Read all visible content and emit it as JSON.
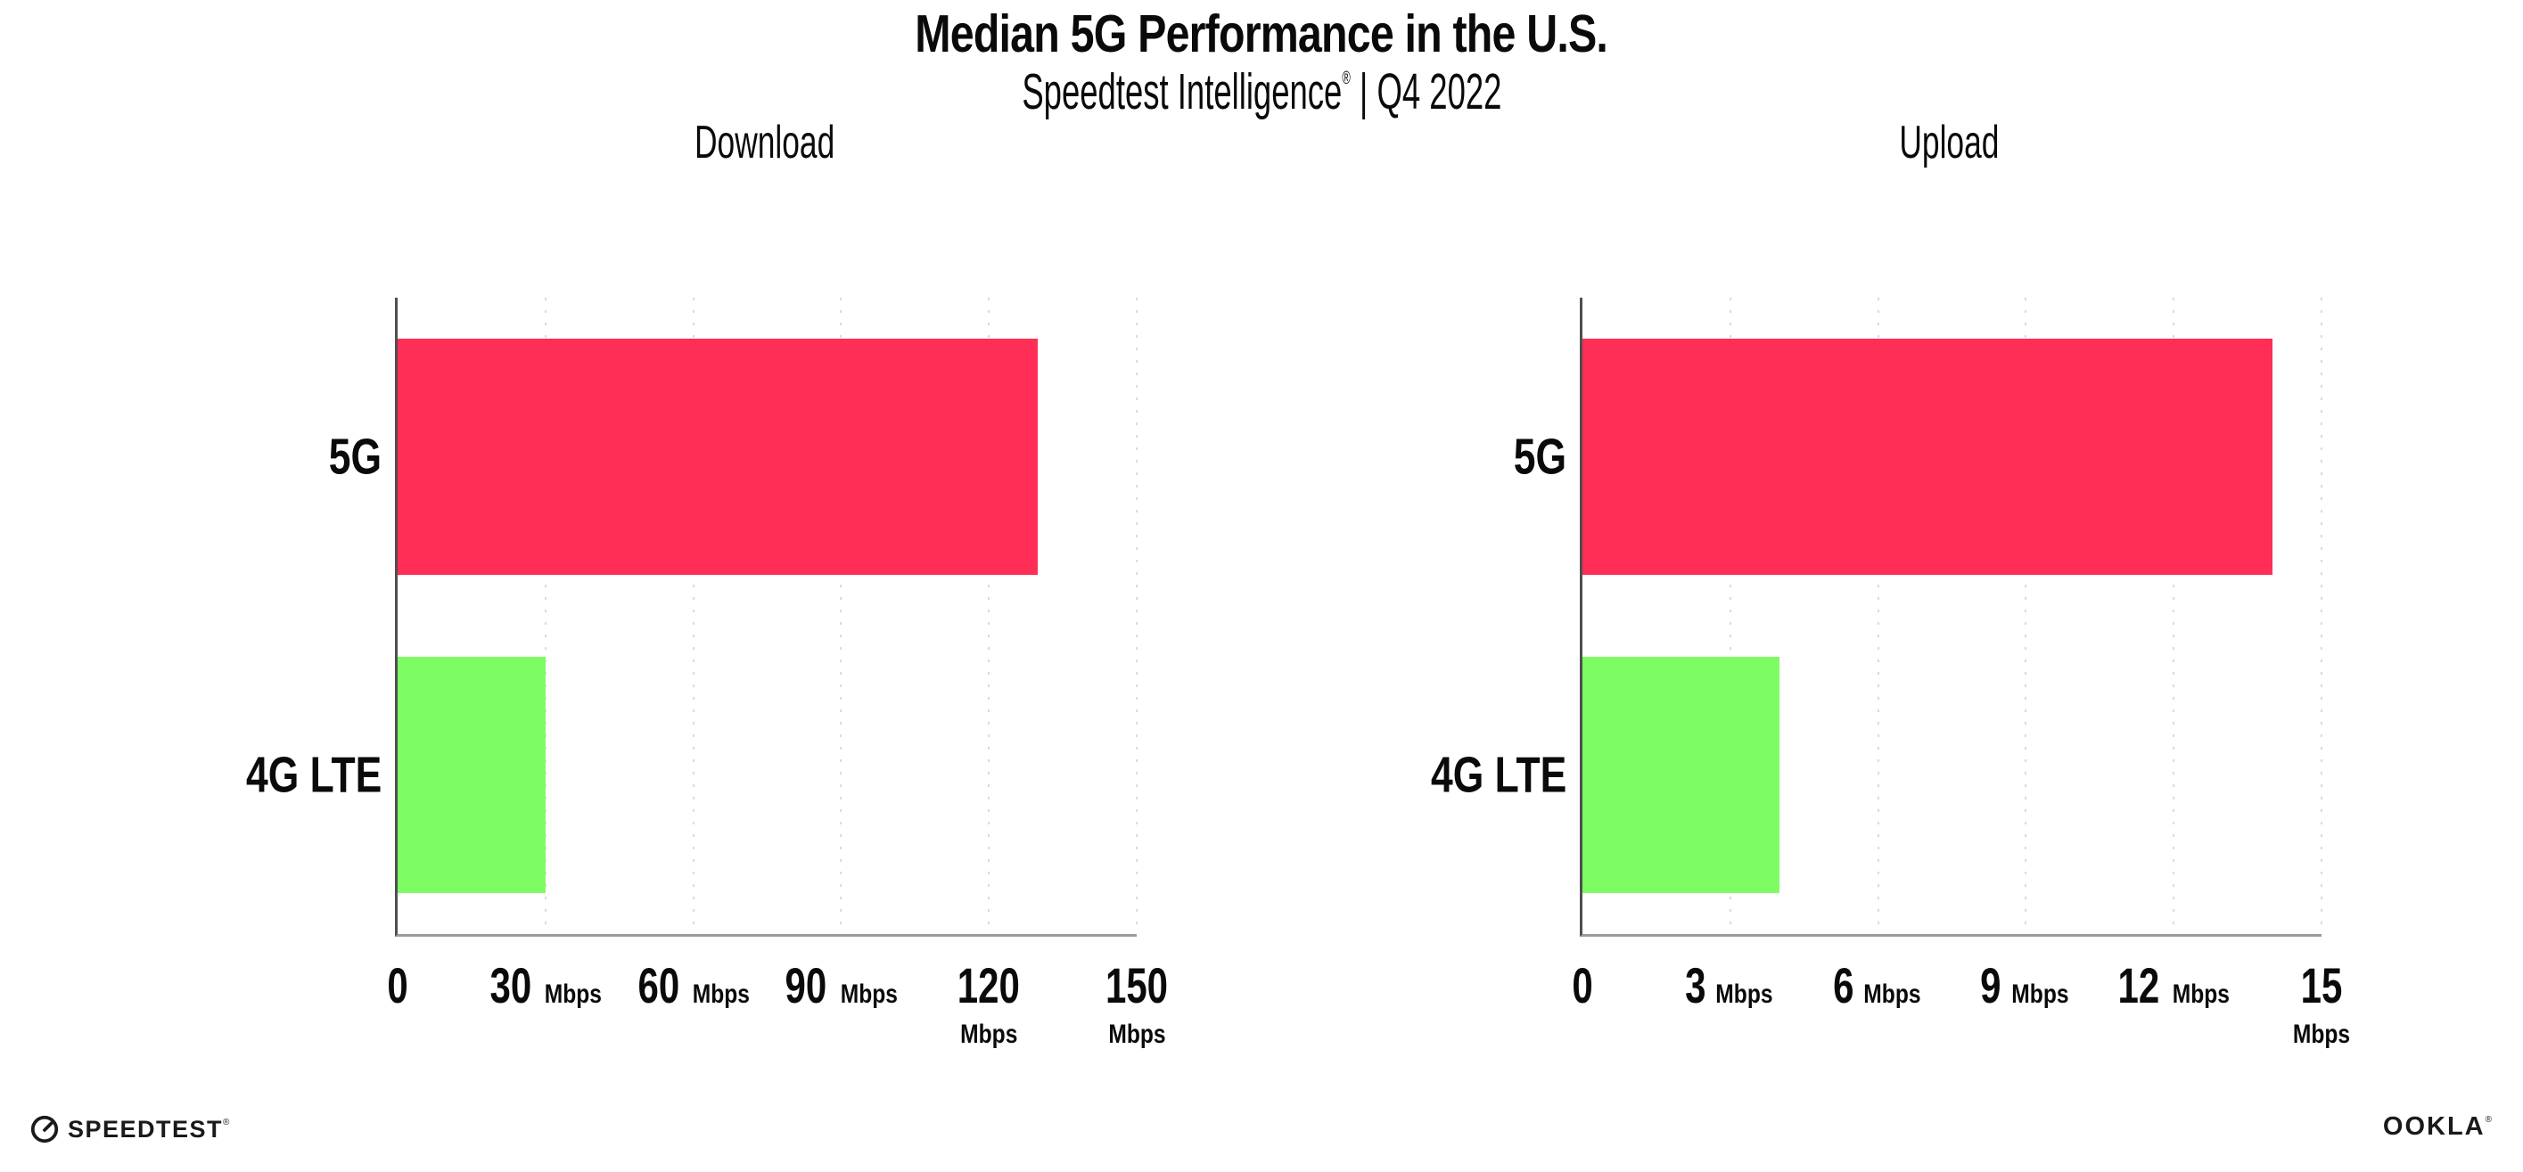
{
  "header": {
    "title": "Median 5G Performance in the U.S.",
    "subtitle_brand": "Speedtest Intelligence",
    "subtitle_reg": "®",
    "subtitle_rest": " | Q4 2022"
  },
  "chart_data": [
    {
      "type": "bar",
      "orientation": "horizontal",
      "title": "Download",
      "categories": [
        "5G",
        "4G LTE"
      ],
      "values": [
        130,
        30
      ],
      "unit": "Mbps",
      "xlim": [
        0,
        150
      ],
      "xticks": [
        0,
        30,
        60,
        90,
        120,
        150
      ],
      "bar_colors": [
        "#ff2e56",
        "#7efc63"
      ],
      "grid": "dotted-vertical",
      "legend": "none"
    },
    {
      "type": "bar",
      "orientation": "horizontal",
      "title": "Upload",
      "categories": [
        "5G",
        "4G LTE"
      ],
      "values": [
        14,
        4
      ],
      "unit": "Mbps",
      "xlim": [
        0,
        15
      ],
      "xticks": [
        0,
        3,
        6,
        9,
        12,
        15
      ],
      "bar_colors": [
        "#ff2e56",
        "#7efc63"
      ],
      "grid": "dotted-vertical",
      "legend": "none"
    }
  ],
  "colors": {
    "bar_5g": "#ff2e56",
    "bar_4g_lte": "#7efc63",
    "gridline": "#d9dae4",
    "axis_left": "#4f4f4f",
    "axis_bottom": "#9b9b9b",
    "text": "#0a0a0a"
  },
  "footer": {
    "speedtest_text": "SPEEDTEST",
    "speedtest_reg": "®",
    "ookla_text": "OOKLA",
    "ookla_reg": "®"
  }
}
